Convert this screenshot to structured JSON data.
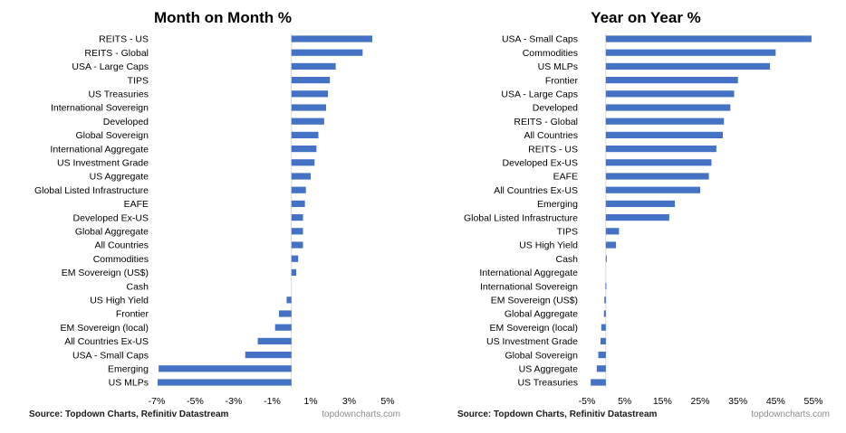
{
  "chart_data": [
    {
      "type": "bar",
      "orientation": "horizontal",
      "title": "Month on Month %",
      "xlabel": "",
      "ylabel": "",
      "xlim": [
        -7,
        5
      ],
      "x_ticks": [
        -7,
        -5,
        -3,
        -1,
        1,
        3,
        5
      ],
      "x_tick_labels": [
        "-7%",
        "-5%",
        "-3%",
        "-1%",
        "1%",
        "3%",
        "5%"
      ],
      "categories": [
        "REITS - US",
        "REITS - Global",
        "USA - Large Caps",
        "TIPS",
        "US Treasuries",
        "International Sovereign",
        "Developed",
        "Global Sovereign",
        "International Aggregate",
        "US Investment Grade",
        "US Aggregate",
        "Global Listed Infrastructure",
        "EAFE",
        "Developed Ex-US",
        "Global Aggregate",
        "All Countries",
        "Commodities",
        "EM Sovereign (US$)",
        "Cash",
        "US High Yield",
        "Frontier",
        "EM Sovereign (local)",
        "All Countries Ex-US",
        "USA - Small Caps",
        "Emerging",
        "US MLPs"
      ],
      "values": [
        4.2,
        3.7,
        2.3,
        2.0,
        1.9,
        1.8,
        1.7,
        1.4,
        1.3,
        1.2,
        1.0,
        0.75,
        0.7,
        0.6,
        0.6,
        0.6,
        0.35,
        0.25,
        0.0,
        -0.25,
        -0.65,
        -0.85,
        -1.75,
        -2.4,
        -6.9,
        -6.95
      ],
      "bar_color": "#4472c4",
      "source": "Source: Topdown Charts, Refinitiv Datastream",
      "watermark": "topdowncharts.com"
    },
    {
      "type": "bar",
      "orientation": "horizontal",
      "title": "Year on Year %",
      "xlabel": "",
      "ylabel": "",
      "xlim": [
        -5,
        55
      ],
      "x_ticks": [
        -5,
        5,
        15,
        25,
        35,
        45,
        55
      ],
      "x_tick_labels": [
        "-5%",
        "5%",
        "15%",
        "25%",
        "35%",
        "45%",
        "55%"
      ],
      "categories": [
        "USA - Small Caps",
        "Commodities",
        "US MLPs",
        "Frontier",
        "USA - Large Caps",
        "Developed",
        "REITS - Global",
        "All Countries",
        "REITS - US",
        "Developed Ex-US",
        "EAFE",
        "All Countries Ex-US",
        "Emerging",
        "Global Listed Infrastructure",
        "TIPS",
        "US High Yield",
        "Cash",
        "International Aggregate",
        "International Sovereign",
        "EM Sovereign (US$)",
        "Global Aggregate",
        "EM Sovereign (local)",
        "US Investment Grade",
        "Global Sovereign",
        "US Aggregate",
        "US Treasuries"
      ],
      "values": [
        54.5,
        45.0,
        43.5,
        35.0,
        34.0,
        33.0,
        31.3,
        31.0,
        29.3,
        28.0,
        27.3,
        25.0,
        18.3,
        16.8,
        3.5,
        2.7,
        0.1,
        0.0,
        -0.1,
        -0.4,
        -0.5,
        -1.2,
        -1.4,
        -2.0,
        -2.4,
        -4.0
      ],
      "bar_color": "#4472c4",
      "source": "Source: Topdown Charts, Refinitiv Datastream",
      "watermark": "topdowncharts.com"
    }
  ]
}
